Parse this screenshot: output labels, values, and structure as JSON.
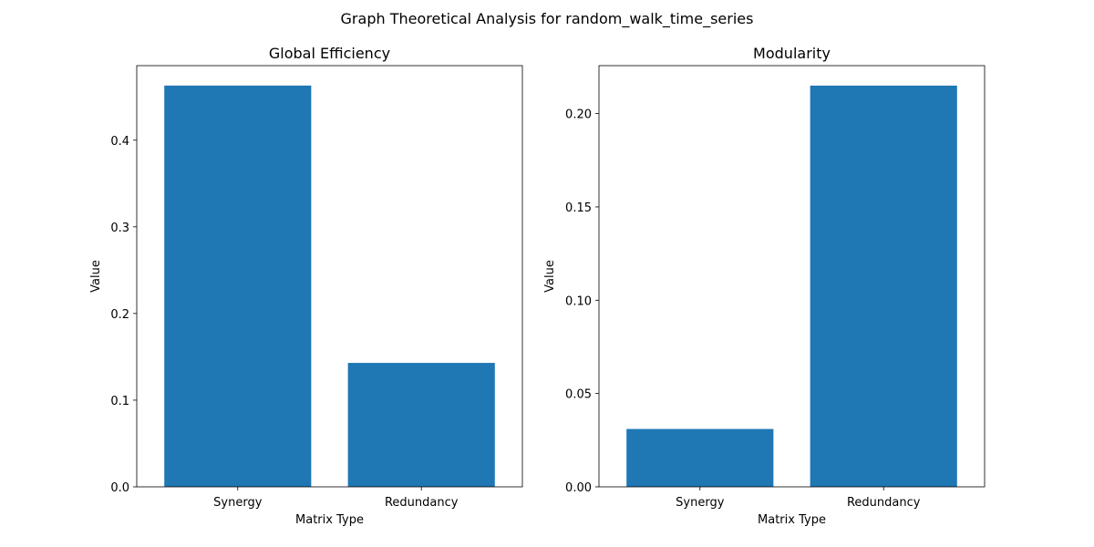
{
  "figure": {
    "suptitle": "Graph Theoretical Analysis for random_walk_time_series"
  },
  "chart_data": [
    {
      "type": "bar",
      "title": "Global Efficiency",
      "xlabel": "Matrix Type",
      "ylabel": "Value",
      "categories": [
        "Synergy",
        "Redundancy"
      ],
      "values": [
        0.463,
        0.143
      ],
      "ylim": [
        0,
        0.486
      ],
      "yticks": [
        0.0,
        0.1,
        0.2,
        0.3,
        0.4
      ],
      "ytick_labels": [
        "0.0",
        "0.1",
        "0.2",
        "0.3",
        "0.4"
      ],
      "bar_color": "#1f77b4",
      "grid": false,
      "legend": "none"
    },
    {
      "type": "bar",
      "title": "Modularity",
      "xlabel": "Matrix Type",
      "ylabel": "Value",
      "categories": [
        "Synergy",
        "Redundancy"
      ],
      "values": [
        0.031,
        0.215
      ],
      "ylim": [
        0,
        0.2257
      ],
      "yticks": [
        0.0,
        0.05,
        0.1,
        0.15,
        0.2
      ],
      "ytick_labels": [
        "0.00",
        "0.05",
        "0.10",
        "0.15",
        "0.20"
      ],
      "bar_color": "#1f77b4",
      "grid": false,
      "legend": "none"
    }
  ]
}
